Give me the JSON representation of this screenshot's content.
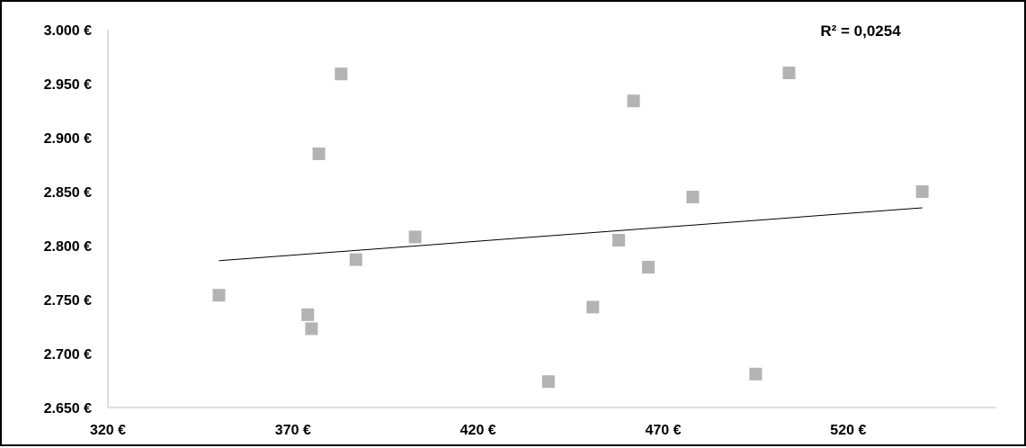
{
  "chart_data": {
    "type": "scatter",
    "title": "",
    "xlabel": "",
    "ylabel": "",
    "xlim": [
      320,
      560
    ],
    "ylim": [
      2650,
      3000
    ],
    "x_ticks": [
      320,
      370,
      420,
      470,
      520
    ],
    "y_ticks": [
      2650,
      2700,
      2750,
      2800,
      2850,
      2900,
      2950,
      3000
    ],
    "x_tick_labels": [
      "320 €",
      "370 €",
      "420 €",
      "470 €",
      "520 €"
    ],
    "y_tick_labels": [
      "2.650 €",
      "2.700 €",
      "2.750 €",
      "2.800 €",
      "2.850 €",
      "2.900 €",
      "2.950 €",
      "3.000 €"
    ],
    "grid": false,
    "legend": "none",
    "series": [
      {
        "marker": "square",
        "color": "#b3b3b3",
        "points": [
          {
            "x": 350,
            "y": 2754
          },
          {
            "x": 374,
            "y": 2736
          },
          {
            "x": 375,
            "y": 2723
          },
          {
            "x": 377,
            "y": 2885
          },
          {
            "x": 383,
            "y": 2959
          },
          {
            "x": 387,
            "y": 2787
          },
          {
            "x": 403,
            "y": 2808
          },
          {
            "x": 439,
            "y": 2674
          },
          {
            "x": 451,
            "y": 2743
          },
          {
            "x": 458,
            "y": 2805
          },
          {
            "x": 462,
            "y": 2934
          },
          {
            "x": 466,
            "y": 2780
          },
          {
            "x": 478,
            "y": 2845
          },
          {
            "x": 495,
            "y": 2681
          },
          {
            "x": 504,
            "y": 2960
          },
          {
            "x": 540,
            "y": 2850
          }
        ]
      }
    ],
    "trendline": {
      "type": "linear",
      "color": "#000000",
      "x_start": 350,
      "y_start": 2786,
      "x_end": 540,
      "y_end": 2835
    },
    "annotations": [
      {
        "text": "R² = 0,0254",
        "position": "top-right"
      }
    ]
  }
}
